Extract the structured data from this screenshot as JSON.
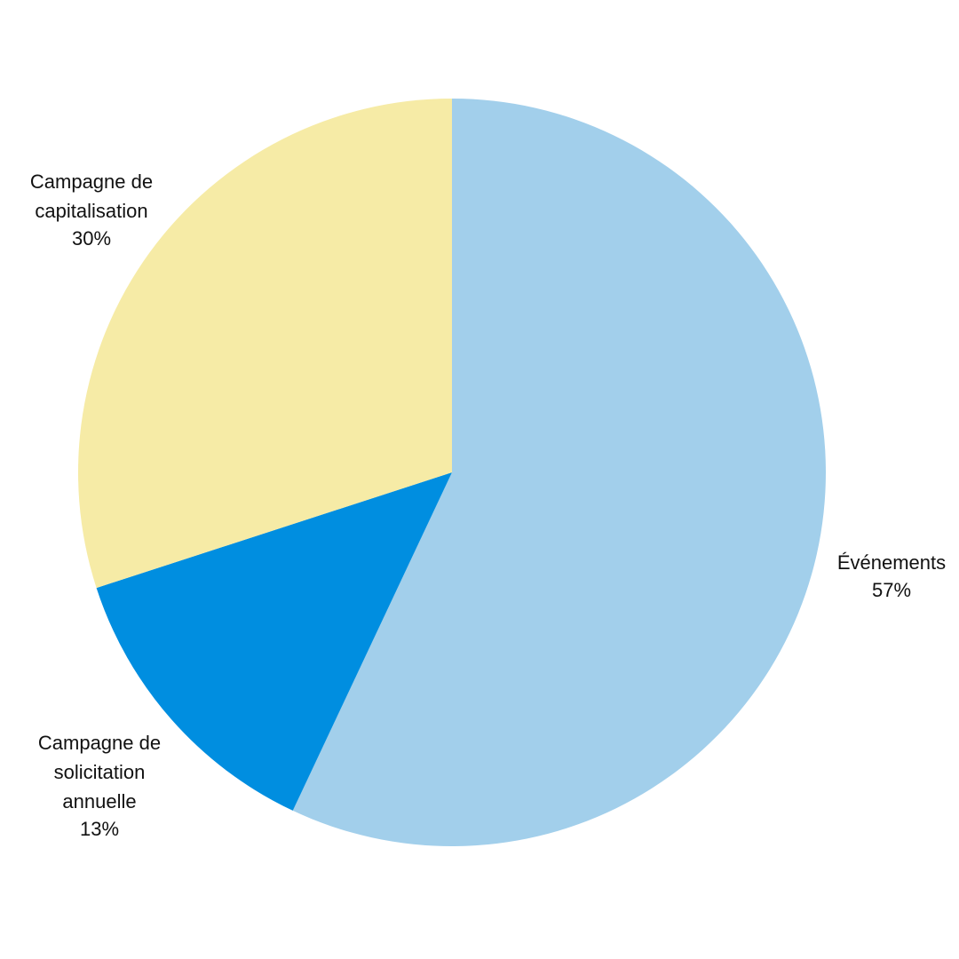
{
  "chart_data": {
    "type": "pie",
    "categories": [
      "Événements",
      "Campagne de solicitation annuelle",
      "Campagne de capitalisation"
    ],
    "values": [
      57,
      13,
      30
    ],
    "value_labels": [
      "57%",
      "13%",
      "30%"
    ],
    "colors": [
      "#a2cfeb",
      "#008ee0",
      "#f6eba6"
    ]
  }
}
